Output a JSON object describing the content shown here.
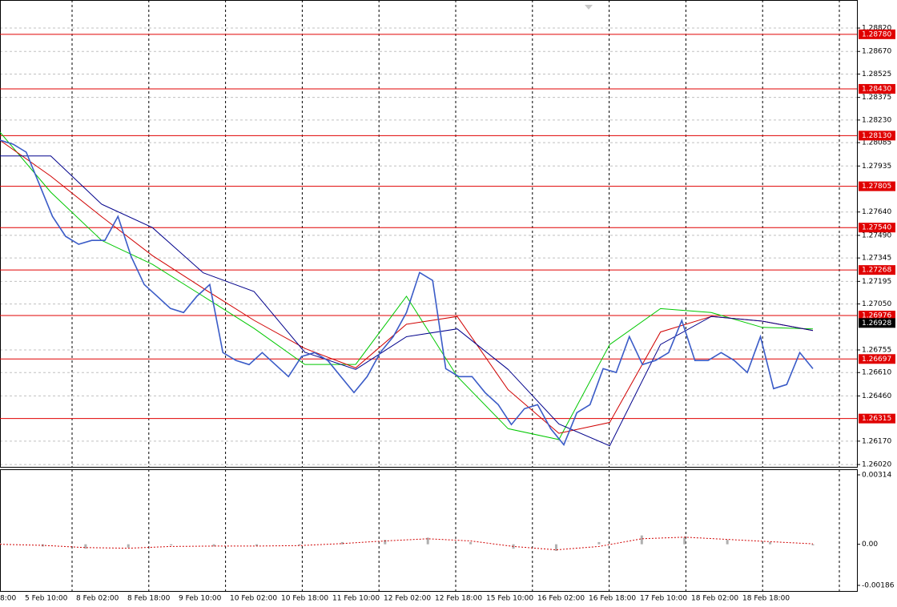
{
  "chart_data": {
    "type": "line",
    "ylim": [
      1.26005,
      1.29
    ],
    "yticks": [
      {
        "value": 1.2882,
        "label": "1.28820"
      },
      {
        "value": 1.2867,
        "label": "1.28670"
      },
      1.28525,
      1.28375,
      {
        "value": 1.2823,
        "label": "1.28230"
      },
      1.28085,
      1.27935,
      {
        "value": 1.2764,
        "label": "1.27640"
      },
      {
        "value": 1.2749,
        "label": "1.27490"
      },
      1.27345,
      1.27195,
      {
        "value": 1.2705,
        "label": "1.27050"
      },
      1.26755,
      {
        "value": 1.2661,
        "label": "1.26610"
      },
      {
        "value": 1.2646,
        "label": "1.26460"
      },
      {
        "value": 1.2617,
        "label": "1.26170"
      },
      {
        "value": 1.2602,
        "label": "1.26020"
      }
    ],
    "xticks": [
      "8:00",
      "5 Feb 10:00",
      "8 Feb 02:00",
      "8 Feb 18:00",
      "9 Feb 10:00",
      "10 Feb 02:00",
      "10 Feb 18:00",
      "11 Feb 10:00",
      "12 Feb 02:00",
      "12 Feb 18:00",
      "15 Feb 10:00",
      "16 Feb 02:00",
      "16 Feb 18:00",
      "17 Feb 10:00",
      "18 Feb 02:00",
      "18 Feb 18:00"
    ],
    "grid": true,
    "price": {
      "color": "#3a5bc7",
      "values": [
        1.28101,
        1.28075,
        1.28024,
        1.27818,
        1.27612,
        1.27484,
        1.27433,
        1.27458,
        1.27458,
        1.27612,
        1.27355,
        1.27175,
        1.27098,
        1.27021,
        1.26995,
        1.27098,
        1.27175,
        1.26738,
        1.26687,
        1.26661,
        1.26738,
        1.26661,
        1.26584,
        1.26713,
        1.26738,
        1.26687,
        1.26584,
        1.26481,
        1.26584,
        1.26738,
        1.26841,
        1.26995,
        1.27252,
        1.27201,
        1.26635,
        1.26584,
        1.26584,
        1.26481,
        1.26404,
        1.26276,
        1.26378,
        1.26404,
        1.2625,
        1.26147,
        1.26353,
        1.26404,
        1.26635,
        1.2661,
        1.26841,
        1.26661,
        1.26687,
        1.26738,
        1.26944,
        1.26687,
        1.26687,
        1.26738,
        1.26687,
        1.2661,
        1.26841,
        1.26507,
        1.26533,
        1.26738,
        1.26635
      ]
    },
    "moving_averages": [
      {
        "color": "#00c800",
        "values": [
          1.28152,
          1.27767,
          1.27458,
          1.27304,
          1.27099,
          1.26893,
          1.26662,
          1.26662,
          1.27099,
          1.26585,
          1.2625,
          1.2618,
          1.2679,
          1.2702,
          1.26995,
          1.269,
          1.2689
        ]
      },
      {
        "color": "#d00000",
        "values": [
          1.281,
          1.2787,
          1.2761,
          1.2736,
          1.2715,
          1.26945,
          1.26765,
          1.2664,
          1.2692,
          1.2697,
          1.265,
          1.2622,
          1.2629,
          1.2687,
          1.2697,
          1.2694,
          1.2688
        ]
      },
      {
        "color": "#00008b",
        "values": [
          1.28,
          1.28,
          1.2769,
          1.2754,
          1.2725,
          1.2713,
          1.2674,
          1.2663,
          1.2684,
          1.2689,
          1.2663,
          1.2628,
          1.2614,
          1.2679,
          1.2697,
          1.2694,
          1.2688
        ]
      }
    ],
    "level_color": "#e00000",
    "levels": [
      {
        "value": 1.2878,
        "label": "1.28780"
      },
      {
        "value": 1.2843,
        "label": "1.28430"
      },
      {
        "value": 1.2813,
        "label": "1.28130"
      },
      1.27805,
      {
        "value": 1.2754,
        "label": "1.27540"
      },
      1.27268,
      1.26976,
      1.26697,
      1.26315
    ],
    "current_price": 1.26928,
    "oscillator": {
      "y2lim": [
        -0.00186,
        0.00314
      ],
      "y2ticks": [
        0.00314,
        {
          "value": 0,
          "label": "0.00"
        },
        -0.00186
      ],
      "histogram": {
        "color": "#b0b0b0",
        "values": [
          5e-05,
          -0.0001,
          -0.0002,
          -0.00015,
          -5e-05,
          -0.0001,
          -8e-05,
          -5e-05,
          0.0001,
          0.0002,
          0.0003,
          0.0001,
          -0.0002,
          -0.0003,
          0.0001,
          0.0004,
          0.0003,
          0.0002,
          0.0001,
          -5e-05
        ]
      },
      "signal": {
        "color": "#d00000",
        "values": [
          0.0,
          -5e-05,
          -0.00015,
          -0.00018,
          -0.0001,
          -8e-05,
          -8e-05,
          -6e-05,
          3e-05,
          0.00015,
          0.00025,
          0.00015,
          -0.0001,
          -0.00025,
          -0.0001,
          0.00025,
          0.00032,
          0.00022,
          0.00012,
          2e-05
        ]
      }
    }
  }
}
